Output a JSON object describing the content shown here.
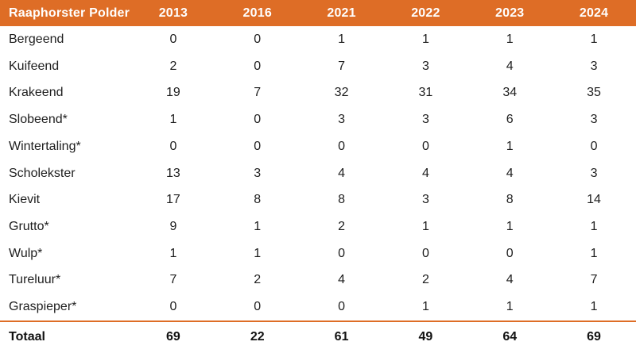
{
  "colors": {
    "accent": "#DE6D26",
    "header_text": "#FFFFFF",
    "body_text": "#1E1E1E",
    "background": "#FFFFFF"
  },
  "chart_data": {
    "type": "table",
    "title": "Raaphorster Polder",
    "columns": [
      "2013",
      "2016",
      "2021",
      "2022",
      "2023",
      "2024"
    ],
    "rows": [
      {
        "name": "Bergeend",
        "values": [
          0,
          0,
          1,
          1,
          1,
          1
        ]
      },
      {
        "name": "Kuifeend",
        "values": [
          2,
          0,
          7,
          3,
          4,
          3
        ]
      },
      {
        "name": "Krakeend",
        "values": [
          19,
          7,
          32,
          31,
          34,
          35
        ]
      },
      {
        "name": "Slobeend*",
        "values": [
          1,
          0,
          3,
          3,
          6,
          3
        ]
      },
      {
        "name": "Wintertaling*",
        "values": [
          0,
          0,
          0,
          0,
          1,
          0
        ]
      },
      {
        "name": "Scholekster",
        "values": [
          13,
          3,
          4,
          4,
          4,
          3
        ]
      },
      {
        "name": "Kievit",
        "values": [
          17,
          8,
          8,
          3,
          8,
          14
        ]
      },
      {
        "name": "Grutto*",
        "values": [
          9,
          1,
          2,
          1,
          1,
          1
        ]
      },
      {
        "name": "Wulp*",
        "values": [
          1,
          1,
          0,
          0,
          0,
          1
        ]
      },
      {
        "name": "Tureluur*",
        "values": [
          7,
          2,
          4,
          2,
          4,
          7
        ]
      },
      {
        "name": "Graspieper*",
        "values": [
          0,
          0,
          0,
          1,
          1,
          1
        ]
      }
    ],
    "total": {
      "name": "Totaal",
      "values": [
        69,
        22,
        61,
        49,
        64,
        69
      ]
    },
    "layout": {
      "grid": "off",
      "row_separators": "none",
      "total_divider": "accent-line"
    }
  }
}
